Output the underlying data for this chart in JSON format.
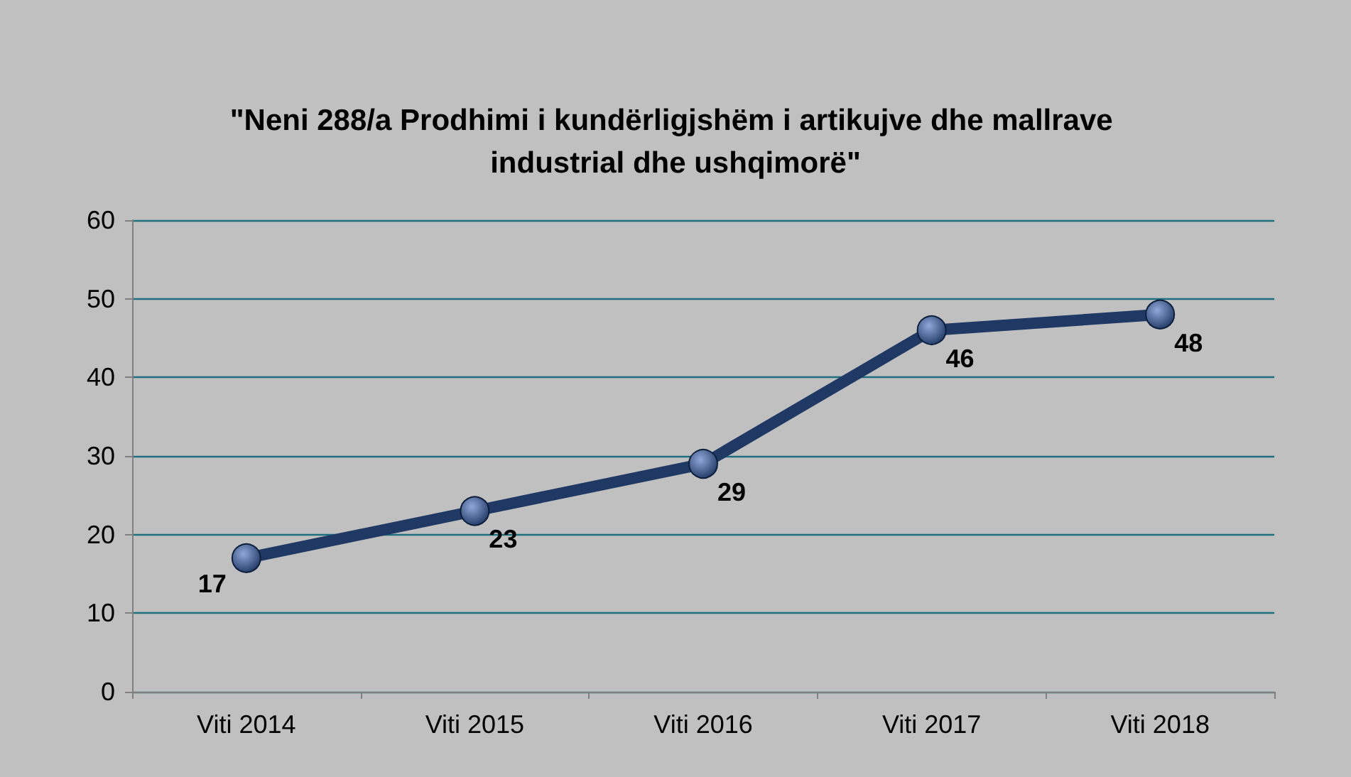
{
  "chart_data": {
    "type": "line",
    "title": "\"Neni 288/a Prodhimi i kundërligjshëm i artikujve dhe mallrave industrial dhe ushqimorë\"",
    "categories": [
      "Viti 2014",
      "Viti 2015",
      "Viti 2016",
      "Viti 2017",
      "Viti 2018"
    ],
    "series": [
      {
        "color": "#1f3864",
        "values": [
          17,
          23,
          29,
          46,
          48
        ]
      }
    ],
    "ylim": [
      0,
      60
    ],
    "yticks": [
      0,
      10,
      20,
      30,
      40,
      50,
      60
    ],
    "grid": "y",
    "marker": "circle",
    "data_labels": true
  }
}
